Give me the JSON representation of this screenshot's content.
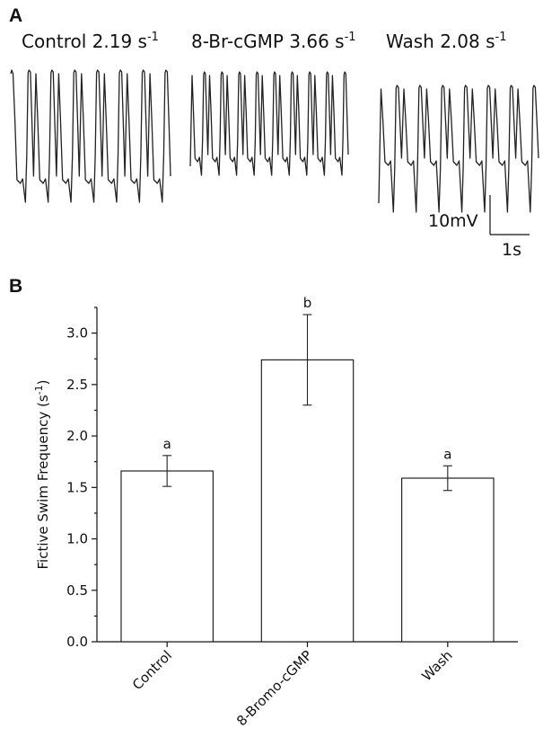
{
  "panel_a": {
    "letter": "A",
    "conditions": [
      {
        "label": "Control 2.19 s",
        "sup": "-1"
      },
      {
        "label": "8-Br-cGMP 3.66 s",
        "sup": "-1"
      },
      {
        "label": "Wash 2.08 s",
        "sup": "-1"
      }
    ],
    "scale_bar": {
      "voltage": "10mV",
      "time": "1s"
    }
  },
  "panel_b": {
    "letter": "B"
  },
  "chart_data": {
    "type": "bar",
    "categories": [
      "Control",
      "8-Bromo-cGMP",
      "Wash"
    ],
    "values": [
      1.66,
      2.74,
      1.59
    ],
    "error_upper": [
      1.81,
      3.18,
      1.71
    ],
    "error_lower": [
      1.51,
      2.3,
      1.47
    ],
    "significance": [
      "a",
      "b",
      "a"
    ],
    "title": "",
    "xlabel": "",
    "ylabel": "Fictive  Swim Frequency (s",
    "ylabel_sup": "-1",
    "ylabel_end": ")",
    "ylim": [
      0,
      3.25
    ],
    "yticks": [
      "0.0",
      "0.5",
      "1.0",
      "1.5",
      "2.0",
      "2.5",
      "3.0"
    ],
    "ytick_values": [
      0,
      0.5,
      1.0,
      1.5,
      2.0,
      2.5,
      3.0
    ],
    "grid": false,
    "bar_fill": "#ffffff",
    "bar_stroke": "#111111"
  }
}
